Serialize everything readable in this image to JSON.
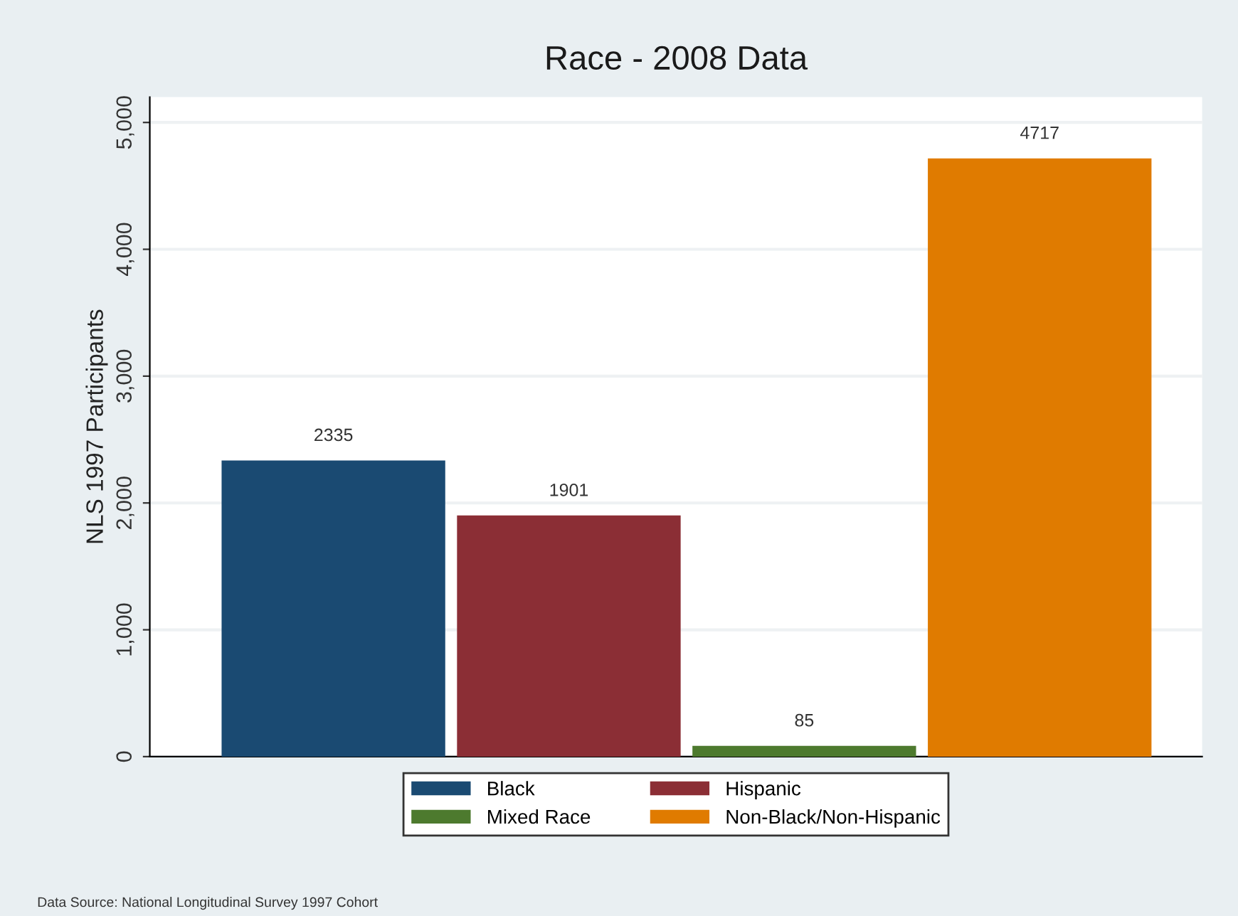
{
  "chart_data": {
    "type": "bar",
    "title": "Race - 2008 Data",
    "ylabel": "NLS 1997 Participants",
    "categories": [
      null,
      null,
      null,
      null
    ],
    "series": [
      {
        "name": "Black",
        "color": "#1a4a72",
        "values": [
          2335,
          null,
          null,
          null
        ]
      },
      {
        "name": "Hispanic",
        "color": "#8b2e35",
        "values": [
          null,
          1901,
          null,
          null
        ]
      },
      {
        "name": "Mixed Race",
        "color": "#4d7a2e",
        "values": [
          null,
          null,
          85,
          null
        ]
      },
      {
        "name": "Non-Black/Non-Hispanic",
        "color": "#e07b00",
        "values": [
          null,
          null,
          null,
          4717
        ]
      }
    ],
    "ylim": [
      0,
      5200
    ],
    "yticks": [
      {
        "value": 0,
        "label": "0"
      },
      {
        "value": 1000,
        "label": "1,000"
      },
      {
        "value": 2000,
        "label": "2,000"
      },
      {
        "value": 3000,
        "label": "3,000"
      },
      {
        "value": 4000,
        "label": "4,000"
      },
      {
        "value": 5000,
        "label": "5,000"
      }
    ],
    "grid": "y",
    "legend": "bottom",
    "data_labels": true,
    "annotations": [
      "Data Source: National Longitudinal Survey 1997 Cohort"
    ]
  }
}
